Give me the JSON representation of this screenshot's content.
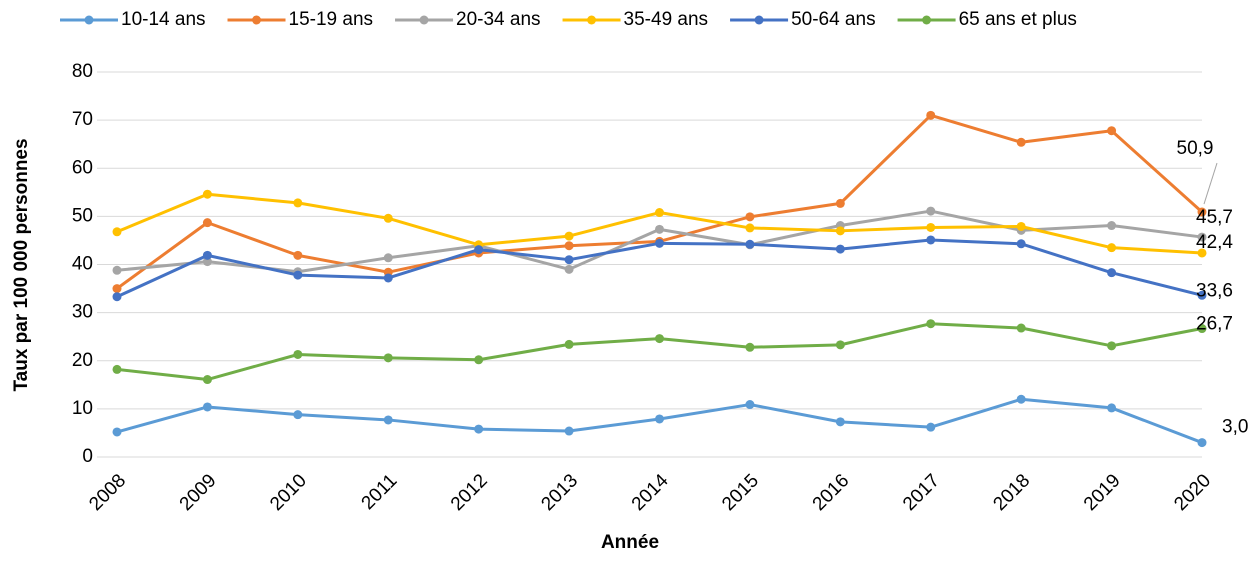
{
  "chart_data": {
    "type": "line",
    "x_label": "Année",
    "y_label": "Taux par 100 000 personnes",
    "x": [
      2008,
      2009,
      2010,
      2011,
      2012,
      2013,
      2014,
      2015,
      2016,
      2017,
      2018,
      2019,
      2020
    ],
    "xlim": [
      2008,
      2020
    ],
    "xticks": [
      2008,
      2009,
      2010,
      2011,
      2012,
      2013,
      2014,
      2015,
      2016,
      2017,
      2018,
      2019,
      2020
    ],
    "ylim": [
      0,
      80
    ],
    "yticks": [
      0,
      10,
      20,
      30,
      40,
      50,
      60,
      70,
      80
    ],
    "grid": true,
    "legend": "top",
    "series": [
      {
        "name": "10-14 ans",
        "color": "#5b9bd5",
        "values": [
          5.2,
          10.4,
          8.8,
          7.7,
          5.8,
          5.4,
          7.9,
          10.9,
          7.3,
          6.2,
          12.0,
          10.2,
          3.0
        ],
        "value_labels": [
          null,
          null,
          null,
          null,
          null,
          null,
          null,
          null,
          null,
          null,
          null,
          null,
          "3,0"
        ]
      },
      {
        "name": "15-19 ans",
        "color": "#ed7d31",
        "values": [
          35.0,
          48.7,
          41.9,
          38.4,
          42.4,
          43.9,
          44.8,
          49.9,
          52.7,
          71.0,
          65.4,
          67.8,
          50.9
        ],
        "value_labels": [
          null,
          null,
          null,
          null,
          null,
          null,
          null,
          null,
          null,
          null,
          null,
          null,
          "50,9"
        ]
      },
      {
        "name": "20-34 ans",
        "color": "#a5a5a5",
        "values": [
          38.8,
          40.6,
          38.5,
          41.4,
          43.9,
          39.0,
          47.3,
          44.1,
          48.1,
          51.1,
          47.1,
          48.1,
          45.7
        ],
        "value_labels": [
          null,
          null,
          null,
          null,
          null,
          null,
          null,
          null,
          null,
          null,
          null,
          null,
          "45,7"
        ]
      },
      {
        "name": "35-49 ans",
        "color": "#ffc000",
        "values": [
          46.8,
          54.6,
          52.8,
          49.6,
          44.1,
          45.9,
          50.8,
          47.6,
          47.0,
          47.7,
          47.9,
          43.5,
          42.4
        ],
        "value_labels": [
          null,
          null,
          null,
          null,
          null,
          null,
          null,
          null,
          null,
          null,
          null,
          null,
          "42,4"
        ]
      },
      {
        "name": "50-64 ans",
        "color": "#4472c4",
        "values": [
          33.3,
          41.9,
          37.8,
          37.2,
          43.1,
          41.0,
          44.4,
          44.2,
          43.2,
          45.1,
          44.3,
          38.3,
          33.6
        ],
        "value_labels": [
          null,
          null,
          null,
          null,
          null,
          null,
          null,
          null,
          null,
          null,
          null,
          null,
          "33,6"
        ]
      },
      {
        "name": "65 ans et plus",
        "color": "#70ad47",
        "values": [
          18.2,
          16.1,
          21.3,
          20.6,
          20.2,
          23.4,
          24.6,
          22.8,
          23.3,
          27.7,
          26.8,
          23.1,
          26.7
        ],
        "value_labels": [
          null,
          null,
          null,
          null,
          null,
          null,
          null,
          null,
          null,
          null,
          null,
          null,
          "26,7"
        ]
      }
    ]
  }
}
